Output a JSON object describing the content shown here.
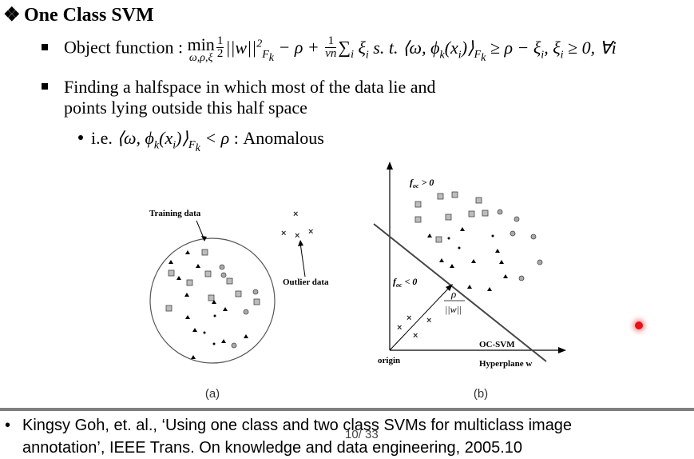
{
  "slide": {
    "title_marker": "❖",
    "title": "One Class SVM",
    "bullet1": {
      "label": "Object function : ",
      "min": "min",
      "min_sub": "ω,ρ,ξ",
      "f1_num": "1",
      "f1_den": "2",
      "norm": "||w||",
      "norm_sup": "2",
      "norm_sub": "F",
      "norm_subsub": "k",
      "minus_rho": " − ρ + ",
      "f2_num": "1",
      "f2_den": "vn",
      "sum": "∑",
      "sum_sub": "i",
      "xi": " ξ",
      "xi_sub": "i",
      "st": " s. t. ⟨ω, ϕ",
      "phi_sub": "k",
      "xi_arg": "(x",
      "xi_arg_sub": "i",
      "close": ")⟩",
      "F_sub": "F",
      "F_subsub": "k",
      "rest": " ≥ ρ − ξ",
      "rest_sub": "i",
      "rest2": ", ξ",
      "rest2_sub": "i",
      "rest3": " ≥ 0, ∀i"
    },
    "bullet2": {
      "line1": "Finding a halfspace in which most of the data lie and",
      "line2": "points lying outside this half space"
    },
    "bullet3": {
      "prefix": "i.e. ",
      "expr": "⟨ω, ϕ",
      "phi_sub": "k",
      "arg": "(x",
      "arg_sub": "i",
      "close": ")⟩",
      "F_sub": "F",
      "F_subsub": "k",
      "rest": " < ρ",
      "suffix": " : Anomalous"
    },
    "figure": {
      "a_training_label": "Training data",
      "a_outlier_label": "Outlier data",
      "a_caption": "(a)",
      "b_pos_label": "f",
      "b_pos_sub": "oc",
      "b_pos_rel": " > 0",
      "b_neg_label": "f",
      "b_neg_sub": "oc",
      "b_neg_rel": " < 0",
      "b_rho": "ρ",
      "b_norm": "||w||",
      "b_origin": "origin",
      "b_ocsvm": "OC-SVM",
      "b_hyperplane": "Hyperplane w",
      "b_caption": "(b)"
    },
    "footer": {
      "bullet": "•",
      "line1": "Kingsy Goh, et. al., ‘Using one class and two class SVMs for multiclass image",
      "line2": "annotation’, IEEE Trans. On knowledge and data engineering, 2005.10"
    },
    "page_number": "10/ 33",
    "colors": {
      "pointer": "#e8101a",
      "divider": "#7f7f7f"
    }
  }
}
